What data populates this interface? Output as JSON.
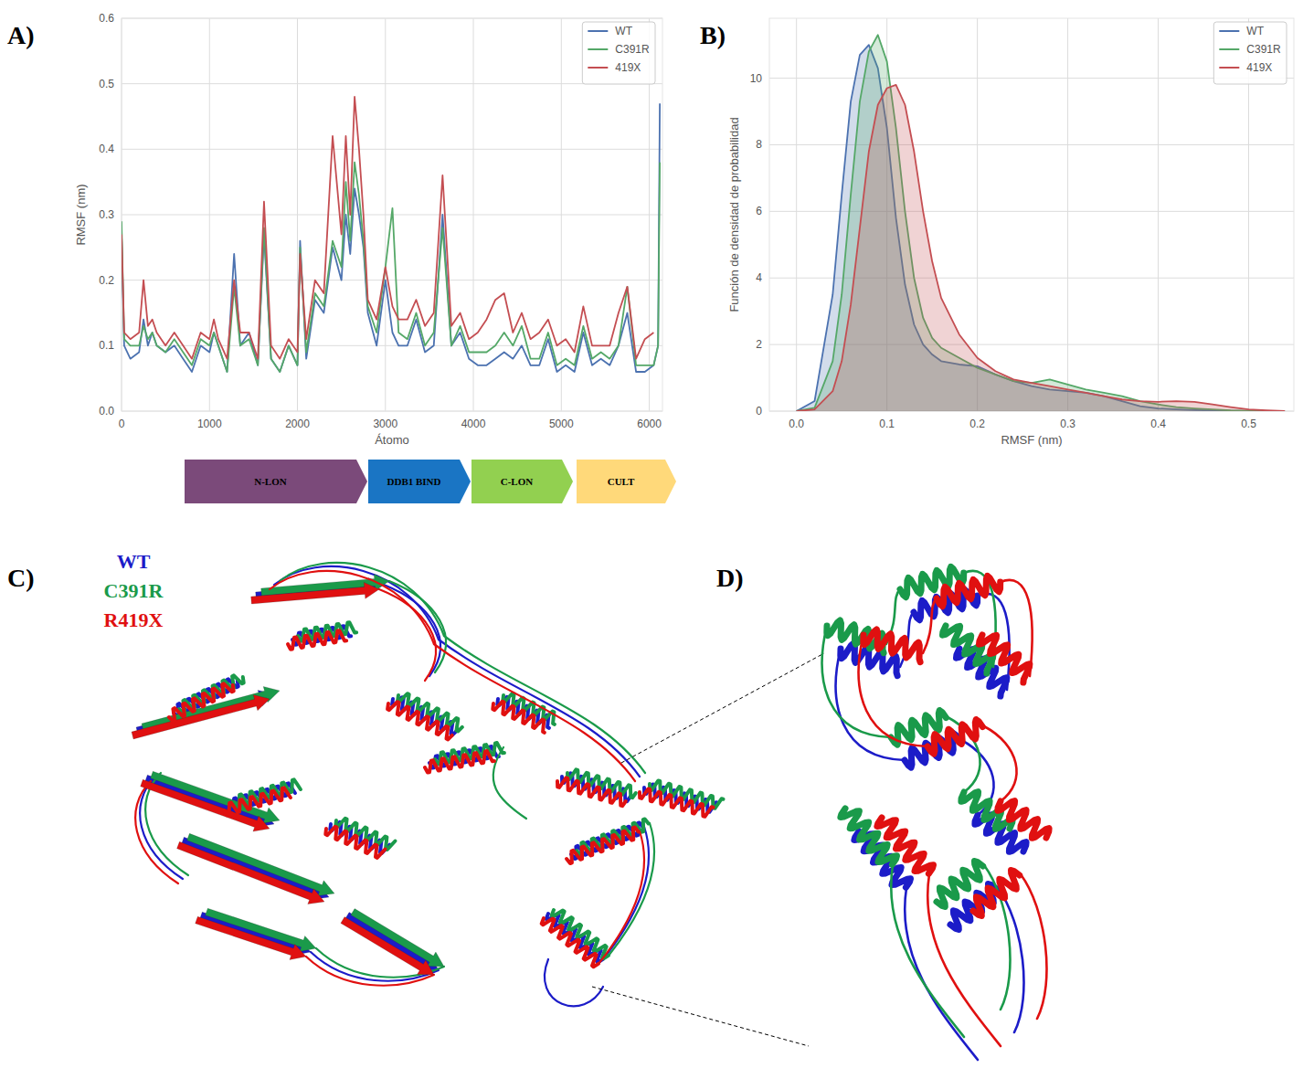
{
  "panel_labels": [
    "A)",
    "B)",
    "C)",
    "D)"
  ],
  "chart_data": [
    {
      "type": "line",
      "x_label": "Átomo",
      "y_label": "RMSF (nm)",
      "x": [
        0,
        30,
        100,
        200,
        250,
        300,
        350,
        400,
        500,
        600,
        700,
        800,
        900,
        1000,
        1050,
        1100,
        1200,
        1280,
        1350,
        1450,
        1550,
        1620,
        1700,
        1800,
        1900,
        2000,
        2030,
        2100,
        2200,
        2300,
        2400,
        2500,
        2550,
        2600,
        2650,
        2700,
        2750,
        2800,
        2900,
        3000,
        3080,
        3150,
        3250,
        3350,
        3450,
        3550,
        3650,
        3750,
        3850,
        3950,
        4050,
        4150,
        4250,
        4350,
        4450,
        4550,
        4650,
        4750,
        4850,
        4950,
        5050,
        5150,
        5250,
        5350,
        5450,
        5550,
        5650,
        5750,
        5850,
        5950,
        6050,
        6100,
        6120
      ],
      "series": [
        {
          "name": "WT",
          "color": "#4c72b0",
          "values": [
            0.27,
            0.1,
            0.08,
            0.09,
            0.14,
            0.1,
            0.12,
            0.1,
            0.09,
            0.1,
            0.08,
            0.06,
            0.1,
            0.09,
            0.12,
            0.1,
            0.06,
            0.24,
            0.1,
            0.12,
            0.07,
            0.27,
            0.08,
            0.06,
            0.1,
            0.07,
            0.26,
            0.08,
            0.17,
            0.15,
            0.25,
            0.2,
            0.3,
            0.24,
            0.34,
            0.3,
            0.25,
            0.15,
            0.1,
            0.2,
            0.12,
            0.1,
            0.1,
            0.14,
            0.09,
            0.1,
            0.3,
            0.1,
            0.12,
            0.08,
            0.07,
            0.07,
            0.08,
            0.09,
            0.08,
            0.1,
            0.07,
            0.07,
            0.11,
            0.06,
            0.07,
            0.06,
            0.12,
            0.07,
            0.08,
            0.07,
            0.1,
            0.15,
            0.06,
            0.06,
            0.07,
            0.1,
            0.47
          ]
        },
        {
          "name": "C391R",
          "color": "#55a868",
          "values": [
            0.29,
            0.11,
            0.1,
            0.1,
            0.13,
            0.11,
            0.12,
            0.1,
            0.09,
            0.11,
            0.09,
            0.07,
            0.11,
            0.1,
            0.12,
            0.1,
            0.06,
            0.19,
            0.1,
            0.11,
            0.07,
            0.28,
            0.08,
            0.06,
            0.1,
            0.07,
            0.25,
            0.09,
            0.18,
            0.16,
            0.26,
            0.22,
            0.35,
            0.26,
            0.38,
            0.33,
            0.26,
            0.16,
            0.12,
            0.22,
            0.31,
            0.12,
            0.11,
            0.15,
            0.1,
            0.12,
            0.28,
            0.1,
            0.13,
            0.09,
            0.09,
            0.09,
            0.1,
            0.12,
            0.1,
            0.13,
            0.08,
            0.08,
            0.12,
            0.07,
            0.08,
            0.07,
            0.13,
            0.08,
            0.09,
            0.08,
            0.1,
            0.19,
            0.07,
            0.07,
            0.07,
            0.1,
            0.38
          ]
        },
        {
          "name": "419X",
          "color": "#c44e52",
          "values": [
            0.27,
            0.12,
            0.11,
            0.12,
            0.2,
            0.13,
            0.14,
            0.12,
            0.1,
            0.12,
            0.1,
            0.08,
            0.12,
            0.11,
            0.14,
            0.11,
            0.08,
            0.2,
            0.12,
            0.12,
            0.08,
            0.32,
            0.1,
            0.08,
            0.11,
            0.09,
            0.24,
            0.11,
            0.2,
            0.18,
            0.42,
            0.27,
            0.42,
            0.3,
            0.48,
            0.4,
            0.3,
            0.17,
            0.14,
            0.22,
            0.16,
            0.14,
            0.14,
            0.17,
            0.13,
            0.15,
            0.36,
            0.13,
            0.15,
            0.11,
            0.12,
            0.14,
            0.17,
            0.18,
            0.12,
            0.15,
            0.11,
            0.12,
            0.14,
            0.1,
            0.11,
            0.09,
            0.16,
            0.1,
            0.1,
            0.1,
            0.15,
            0.19,
            0.08,
            0.11,
            0.12,
            null,
            null
          ]
        }
      ],
      "xlim": [
        0,
        6150
      ],
      "xticks": [
        0,
        1000,
        2000,
        3000,
        4000,
        5000,
        6000
      ],
      "ylim": [
        0,
        0.6
      ],
      "yticks": [
        {
          "value": 0,
          "label": "0.0"
        },
        0.1,
        0.2,
        0.3,
        0.4,
        0.5,
        0.6
      ],
      "grid": true,
      "legend": "upper right"
    },
    {
      "type": "area",
      "x_label": "RMSF (nm)",
      "y_label": "Función de densidad de probabilidad",
      "x": [
        0,
        0.02,
        0.04,
        0.05,
        0.06,
        0.07,
        0.08,
        0.09,
        0.1,
        0.11,
        0.12,
        0.13,
        0.14,
        0.15,
        0.16,
        0.18,
        0.2,
        0.22,
        0.24,
        0.26,
        0.28,
        0.3,
        0.32,
        0.34,
        0.36,
        0.38,
        0.4,
        0.42,
        0.44,
        0.46,
        0.48,
        0.5,
        0.52,
        0.54
      ],
      "series": [
        {
          "name": "WT",
          "color": "#4c72b0",
          "values": [
            0,
            0.3,
            3.5,
            6.5,
            9.3,
            10.7,
            11.0,
            10.3,
            8.5,
            5.8,
            3.8,
            2.6,
            2.0,
            1.7,
            1.5,
            1.4,
            1.35,
            1.1,
            0.9,
            0.75,
            0.65,
            0.6,
            0.55,
            0.45,
            0.3,
            0.15,
            0.08,
            0.05,
            0.03,
            0.02,
            0.01,
            0,
            0,
            0
          ]
        },
        {
          "name": "C391R",
          "color": "#55a868",
          "values": [
            0,
            0.1,
            1.5,
            3.5,
            6.5,
            9.3,
            10.8,
            11.3,
            10.5,
            8.5,
            6.0,
            4.0,
            2.8,
            2.2,
            1.9,
            1.6,
            1.3,
            1.1,
            0.9,
            0.85,
            0.95,
            0.8,
            0.65,
            0.55,
            0.45,
            0.3,
            0.2,
            0.12,
            0.08,
            0.05,
            0.02,
            0.01,
            0,
            0
          ]
        },
        {
          "name": "419X",
          "color": "#c44e52",
          "values": [
            0,
            0.05,
            0.6,
            1.5,
            3.2,
            5.5,
            7.8,
            9.2,
            9.7,
            9.8,
            9.2,
            7.8,
            6.0,
            4.5,
            3.4,
            2.3,
            1.6,
            1.2,
            0.95,
            0.85,
            0.75,
            0.65,
            0.55,
            0.45,
            0.35,
            0.3,
            0.28,
            0.3,
            0.28,
            0.2,
            0.12,
            0.05,
            0.02,
            0
          ]
        }
      ],
      "xlim": [
        -0.03,
        0.55
      ],
      "xticks": [
        {
          "value": 0,
          "label": "0.0"
        },
        0.1,
        0.2,
        0.3,
        0.4,
        0.5
      ],
      "ylim": [
        0,
        11.8
      ],
      "yticks": [
        0,
        2,
        4,
        6,
        8,
        10
      ],
      "grid": true,
      "legend": "upper right"
    }
  ],
  "domains": [
    {
      "label": "N-LON",
      "color": "#7b4a7a"
    },
    {
      "label": "DDB1 BIND",
      "color": "#1a75c4"
    },
    {
      "label": "C-LON",
      "color": "#92d050"
    },
    {
      "label": "CULT",
      "color": "#ffd97a"
    }
  ],
  "structure": {
    "series": [
      {
        "name": "WT",
        "color": "#1c1cc8"
      },
      {
        "name": "C391R",
        "color": "#1a9a4a"
      },
      {
        "name": "R419X",
        "color": "#e01010"
      }
    ]
  }
}
